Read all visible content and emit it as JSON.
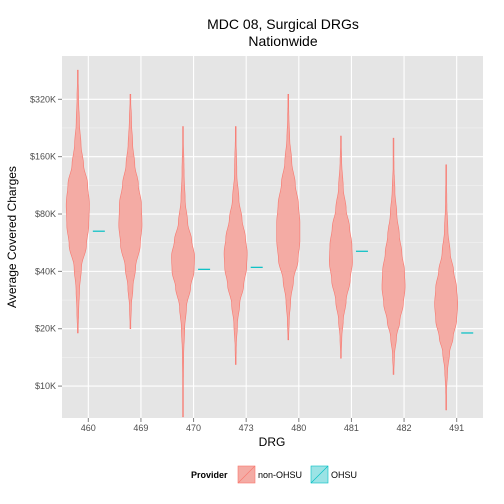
{
  "chart_data": {
    "type": "violin",
    "title": "MDC 08, Surgical DRGs",
    "subtitle": "Nationwide",
    "xlabel": "DRG",
    "ylabel": "Average Covered Charges",
    "y_scale": "log",
    "ylim": [
      6800,
      540000
    ],
    "categories": [
      "460",
      "469",
      "470",
      "473",
      "480",
      "481",
      "482",
      "491"
    ],
    "y_ticks": [
      {
        "value": 10000,
        "label": "$10K"
      },
      {
        "value": 20000,
        "label": "$20K"
      },
      {
        "value": 40000,
        "label": "$40K"
      },
      {
        "value": 80000,
        "label": "$80K"
      },
      {
        "value": 160000,
        "label": "$160K"
      },
      {
        "value": 320000,
        "label": "$320K"
      }
    ],
    "grid": true,
    "legend": {
      "title": "Provider",
      "position": "bottom",
      "entries": [
        "non-OHSU",
        "OHSU"
      ]
    },
    "colors": {
      "non_ohsu_fill": "#f4aba4",
      "non_ohsu_line": "#f8766d",
      "ohsu_fill": "#9be3e5",
      "ohsu_line": "#00bfc4",
      "panel": "#e5e5e5",
      "grid_major": "#ffffff",
      "grid_minor": "#f2f2f2"
    },
    "series": [
      {
        "name": "non-OHSU",
        "violins": [
          {
            "category": "460",
            "min": 19000,
            "max": 455000,
            "profile": [
              [
                19000,
                0.02
              ],
              [
                25000,
                0.08
              ],
              [
                32000,
                0.15
              ],
              [
                42000,
                0.32
              ],
              [
                55000,
                0.75
              ],
              [
                70000,
                0.95
              ],
              [
                90000,
                1.0
              ],
              [
                115000,
                0.85
              ],
              [
                145000,
                0.5
              ],
              [
                185000,
                0.28
              ],
              [
                240000,
                0.14
              ],
              [
                320000,
                0.07
              ],
              [
                455000,
                0.01
              ]
            ]
          },
          {
            "category": "469",
            "min": 20000,
            "max": 340000,
            "profile": [
              [
                20000,
                0.02
              ],
              [
                26000,
                0.08
              ],
              [
                33000,
                0.22
              ],
              [
                42000,
                0.45
              ],
              [
                55000,
                0.85
              ],
              [
                70000,
                1.0
              ],
              [
                90000,
                0.95
              ],
              [
                115000,
                0.68
              ],
              [
                145000,
                0.38
              ],
              [
                185000,
                0.2
              ],
              [
                240000,
                0.1
              ],
              [
                340000,
                0.01
              ]
            ]
          },
          {
            "category": "470",
            "min": 6900,
            "max": 230000,
            "profile": [
              [
                6900,
                0.01
              ],
              [
                10000,
                0.03
              ],
              [
                15000,
                0.06
              ],
              [
                20000,
                0.14
              ],
              [
                26000,
                0.3
              ],
              [
                33000,
                0.65
              ],
              [
                40000,
                0.95
              ],
              [
                48000,
                1.0
              ],
              [
                58000,
                0.75
              ],
              [
                72000,
                0.4
              ],
              [
                95000,
                0.18
              ],
              [
                130000,
                0.09
              ],
              [
                230000,
                0.01
              ]
            ]
          },
          {
            "category": "473",
            "min": 13000,
            "max": 230000,
            "profile": [
              [
                13000,
                0.02
              ],
              [
                16000,
                0.05
              ],
              [
                21000,
                0.15
              ],
              [
                27000,
                0.35
              ],
              [
                34000,
                0.7
              ],
              [
                42000,
                0.95
              ],
              [
                50000,
                1.0
              ],
              [
                60000,
                0.85
              ],
              [
                75000,
                0.55
              ],
              [
                95000,
                0.28
              ],
              [
                130000,
                0.1
              ],
              [
                230000,
                0.01
              ]
            ]
          },
          {
            "category": "480",
            "min": 17500,
            "max": 340000,
            "profile": [
              [
                17500,
                0.02
              ],
              [
                22000,
                0.08
              ],
              [
                28000,
                0.2
              ],
              [
                36000,
                0.45
              ],
              [
                46000,
                0.85
              ],
              [
                58000,
                1.0
              ],
              [
                72000,
                1.0
              ],
              [
                90000,
                0.88
              ],
              [
                115000,
                0.6
              ],
              [
                150000,
                0.3
              ],
              [
                200000,
                0.12
              ],
              [
                260000,
                0.05
              ],
              [
                340000,
                0.01
              ]
            ]
          },
          {
            "category": "481",
            "min": 14000,
            "max": 205000,
            "profile": [
              [
                14000,
                0.02
              ],
              [
                18000,
                0.08
              ],
              [
                22000,
                0.2
              ],
              [
                28000,
                0.45
              ],
              [
                36000,
                0.8
              ],
              [
                45000,
                1.0
              ],
              [
                55000,
                0.95
              ],
              [
                68000,
                0.75
              ],
              [
                85000,
                0.45
              ],
              [
                110000,
                0.2
              ],
              [
                150000,
                0.07
              ],
              [
                205000,
                0.01
              ]
            ]
          },
          {
            "category": "482",
            "min": 11500,
            "max": 200000,
            "profile": [
              [
                11500,
                0.02
              ],
              [
                14500,
                0.08
              ],
              [
                18000,
                0.25
              ],
              [
                22000,
                0.55
              ],
              [
                27000,
                0.85
              ],
              [
                33000,
                1.0
              ],
              [
                40000,
                0.95
              ],
              [
                50000,
                0.72
              ],
              [
                62000,
                0.5
              ],
              [
                80000,
                0.28
              ],
              [
                105000,
                0.12
              ],
              [
                140000,
                0.04
              ],
              [
                200000,
                0.01
              ]
            ]
          },
          {
            "category": "491",
            "min": 7500,
            "max": 145000,
            "profile": [
              [
                7500,
                0.01
              ],
              [
                9500,
                0.04
              ],
              [
                12000,
                0.12
              ],
              [
                15000,
                0.3
              ],
              [
                18000,
                0.6
              ],
              [
                22000,
                0.9
              ],
              [
                27000,
                1.0
              ],
              [
                33000,
                0.9
              ],
              [
                40000,
                0.65
              ],
              [
                50000,
                0.35
              ],
              [
                65000,
                0.15
              ],
              [
                90000,
                0.06
              ],
              [
                145000,
                0.01
              ]
            ]
          }
        ]
      },
      {
        "name": "OHSU",
        "points": [
          {
            "category": "460",
            "value": 65000
          },
          {
            "category": "470",
            "value": 41000
          },
          {
            "category": "473",
            "value": 42000
          },
          {
            "category": "481",
            "value": 51000
          },
          {
            "category": "491",
            "value": 19000
          }
        ]
      }
    ]
  }
}
